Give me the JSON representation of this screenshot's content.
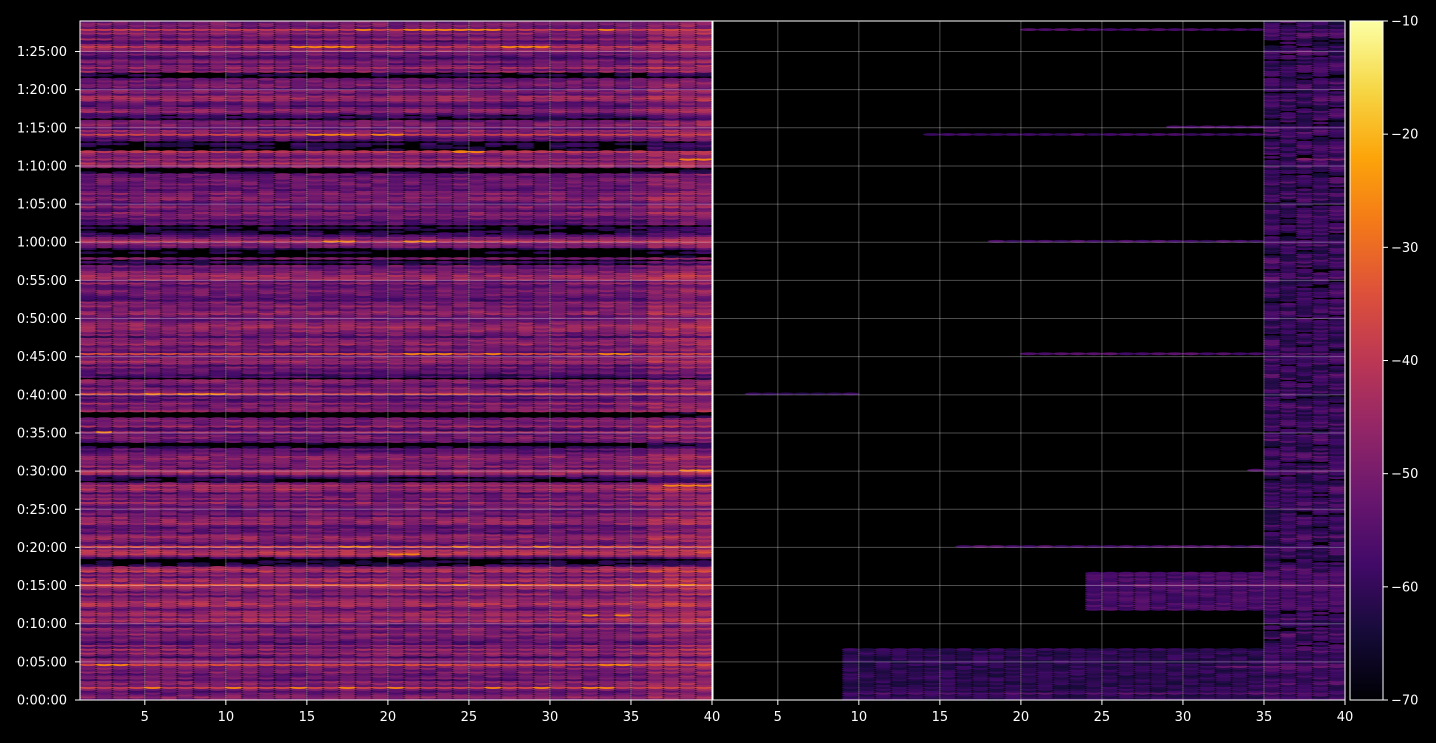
{
  "chart_data": {
    "type": "heatmap",
    "title": "",
    "xlabel": "",
    "ylabel": "",
    "panels": [
      {
        "name": "",
        "x_range": [
          1,
          40
        ],
        "x_ticks": [
          5,
          10,
          15,
          20,
          25,
          30,
          35,
          40
        ]
      },
      {
        "name": "",
        "x_range": [
          1,
          40
        ],
        "x_ticks": [
          5,
          10,
          15,
          20,
          25,
          30,
          35,
          40
        ]
      }
    ],
    "y_range_seconds": [
      0,
      5340
    ],
    "y_ticks": [
      {
        "seconds": 0,
        "label": "0:00:00"
      },
      {
        "seconds": 300,
        "label": "0:05:00"
      },
      {
        "seconds": 600,
        "label": "0:10:00"
      },
      {
        "seconds": 900,
        "label": "0:15:00"
      },
      {
        "seconds": 1200,
        "label": "0:20:00"
      },
      {
        "seconds": 1500,
        "label": "0:25:00"
      },
      {
        "seconds": 1800,
        "label": "0:30:00"
      },
      {
        "seconds": 2100,
        "label": "0:35:00"
      },
      {
        "seconds": 2400,
        "label": "0:40:00"
      },
      {
        "seconds": 2700,
        "label": "0:45:00"
      },
      {
        "seconds": 3000,
        "label": "0:50:00"
      },
      {
        "seconds": 3300,
        "label": "0:55:00"
      },
      {
        "seconds": 3600,
        "label": "1:00:00"
      },
      {
        "seconds": 3900,
        "label": "1:05:00"
      },
      {
        "seconds": 4200,
        "label": "1:10:00"
      },
      {
        "seconds": 4500,
        "label": "1:15:00"
      },
      {
        "seconds": 4800,
        "label": "1:20:00"
      },
      {
        "seconds": 5100,
        "label": "1:25:00"
      }
    ],
    "colorbar": {
      "colormap": "inferno",
      "range": [
        -70,
        -10
      ],
      "ticks": [
        {
          "value": -10,
          "label": "−10"
        },
        {
          "value": -20,
          "label": "−20"
        },
        {
          "value": -30,
          "label": "−30"
        },
        {
          "value": -40,
          "label": "−40"
        },
        {
          "value": -50,
          "label": "−50"
        },
        {
          "value": -60,
          "label": "−60"
        },
        {
          "value": -70,
          "label": "−70"
        }
      ]
    },
    "grid": true,
    "background": "#000000",
    "left_panel_rows": [
      {
        "t": 90,
        "level": -38,
        "hot_cols": [
          5,
          10,
          14,
          17,
          20,
          26,
          29,
          32,
          33
        ]
      },
      {
        "t": 270,
        "level": -36,
        "hot_cols": [
          2,
          3,
          33,
          34
        ]
      },
      {
        "t": 660,
        "level": -44,
        "hot_cols": [
          32,
          34
        ]
      },
      {
        "t": 900,
        "level": -33,
        "hot_cols": [
          24,
          27,
          35,
          38
        ]
      },
      {
        "t": 1140,
        "level": -40,
        "hot_cols": [
          20,
          21
        ]
      },
      {
        "t": 1200,
        "level": -35,
        "hot_cols": [
          17,
          18,
          24,
          29
        ]
      },
      {
        "t": 1680,
        "level": -43,
        "hot_cols": [
          37,
          38,
          39
        ]
      },
      {
        "t": 1800,
        "level": -44,
        "hot_cols": [
          38,
          39
        ]
      },
      {
        "t": 2100,
        "level": -44,
        "hot_cols": [
          2
        ]
      },
      {
        "t": 2400,
        "level": -36,
        "hot_cols": [
          5,
          7,
          8,
          9
        ]
      },
      {
        "t": 2715,
        "level": -36,
        "hot_cols": [
          21,
          22,
          23,
          26,
          33,
          34
        ]
      },
      {
        "t": 3600,
        "level": -40,
        "hot_cols": [
          16,
          17,
          21,
          22
        ]
      },
      {
        "t": 4245,
        "level": -44,
        "hot_cols": [
          38,
          39
        ]
      },
      {
        "t": 4305,
        "level": -40,
        "hot_cols": [
          24,
          25
        ]
      },
      {
        "t": 4440,
        "level": -38,
        "hot_cols": [
          15,
          16,
          17,
          19,
          20
        ]
      },
      {
        "t": 5130,
        "level": -40,
        "hot_cols": [
          14,
          15,
          16,
          17,
          27,
          28,
          29
        ]
      },
      {
        "t": 5265,
        "level": -38,
        "hot_cols": [
          18,
          21,
          22,
          23,
          24,
          25,
          26,
          33
        ]
      }
    ],
    "right_panel_rows": [
      {
        "t": 45,
        "level": -55,
        "cols_from": 9,
        "cols_to": 39
      },
      {
        "t": 260,
        "level": -53,
        "cols_from": 32,
        "cols_to": 39
      },
      {
        "t": 900,
        "level": -52,
        "cols_from": 25,
        "cols_to": 39
      },
      {
        "t": 1200,
        "level": -57,
        "cols_from": 16,
        "cols_to": 39
      },
      {
        "t": 1800,
        "level": -56,
        "cols_from": 34,
        "cols_to": 39
      },
      {
        "t": 2400,
        "level": -60,
        "cols_from": 3,
        "cols_to": 9
      },
      {
        "t": 2715,
        "level": -56,
        "cols_from": 20,
        "cols_to": 39
      },
      {
        "t": 3600,
        "level": -58,
        "cols_from": 18,
        "cols_to": 39
      },
      {
        "t": 4245,
        "level": -50,
        "cols_from": 37,
        "cols_to": 39
      },
      {
        "t": 4440,
        "level": -58,
        "cols_from": 14,
        "cols_to": 39
      },
      {
        "t": 4500,
        "level": -56,
        "cols_from": 29,
        "cols_to": 39
      },
      {
        "t": 5265,
        "level": -57,
        "cols_from": 20,
        "cols_to": 39
      }
    ]
  }
}
